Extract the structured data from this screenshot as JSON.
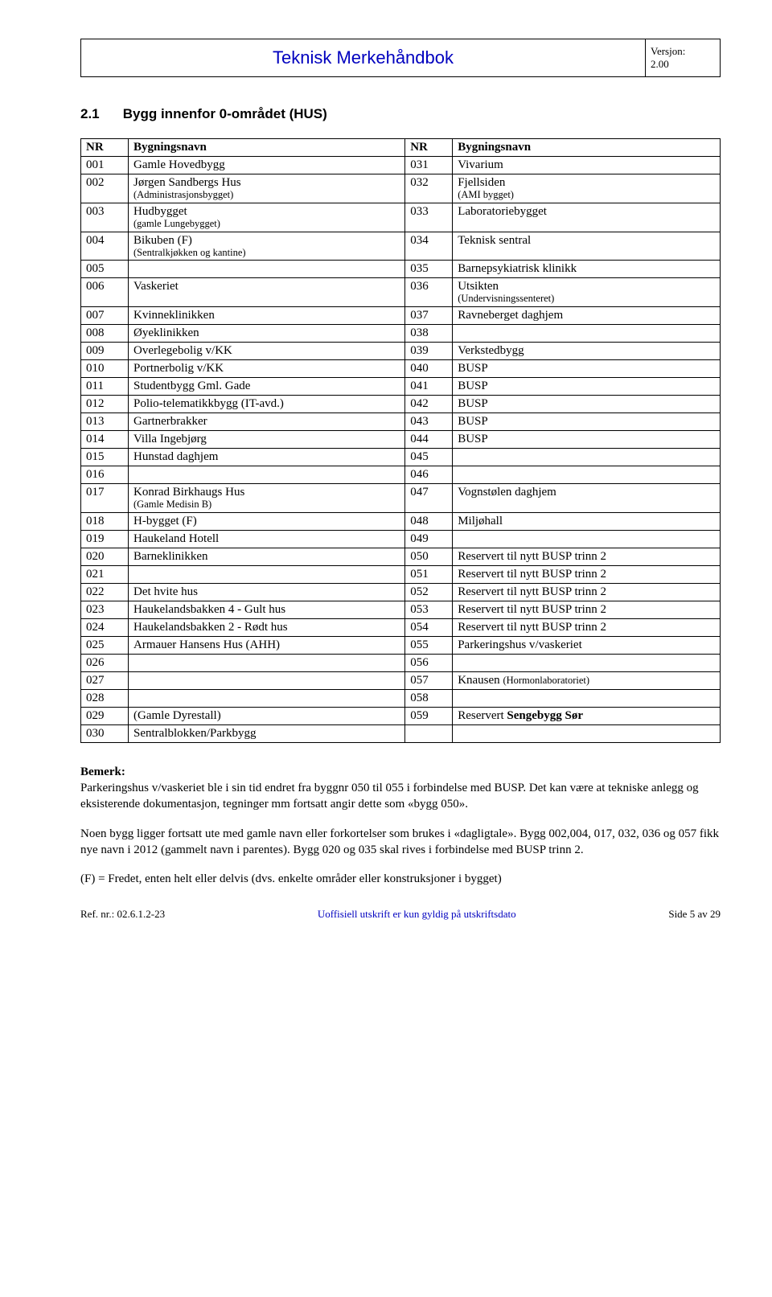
{
  "header": {
    "title": "Teknisk Merkehåndbok",
    "version_label": "Versjon:",
    "version_value": "2.00"
  },
  "section": {
    "number": "2.1",
    "title": "Bygg innenfor 0-området (HUS)"
  },
  "table": {
    "headers": {
      "nr": "NR",
      "name": "Bygningsnavn"
    },
    "rows": [
      {
        "l_nr": "001",
        "l_name": "Gamle Hovedbygg",
        "l_sub": "",
        "r_nr": "031",
        "r_name": "Vivarium",
        "r_sub": ""
      },
      {
        "l_nr": "002",
        "l_name": "Jørgen Sandbergs Hus",
        "l_sub": "(Administrasjonsbygget)",
        "r_nr": "032",
        "r_name": "Fjellsiden",
        "r_sub": "(AMI bygget)"
      },
      {
        "l_nr": "003",
        "l_name": "Hudbygget",
        "l_sub": "(gamle Lungebygget)",
        "r_nr": "033",
        "r_name": "Laboratoriebygget",
        "r_sub": ""
      },
      {
        "l_nr": "004",
        "l_name": "Bikuben (F)",
        "l_sub": "(Sentralkjøkken og kantine)",
        "r_nr": "034",
        "r_name": "Teknisk sentral",
        "r_sub": ""
      },
      {
        "l_nr": "005",
        "l_name": "",
        "l_sub": "",
        "r_nr": "035",
        "r_name": "Barnepsykiatrisk klinikk",
        "r_sub": ""
      },
      {
        "l_nr": "006",
        "l_name": "Vaskeriet",
        "l_sub": "",
        "r_nr": "036",
        "r_name": "Utsikten",
        "r_sub": "(Undervisningssenteret)"
      },
      {
        "l_nr": "007",
        "l_name": "Kvinneklinikken",
        "l_sub": "",
        "r_nr": "037",
        "r_name": "Ravneberget daghjem",
        "r_sub": ""
      },
      {
        "l_nr": "008",
        "l_name": "Øyeklinikken",
        "l_sub": "",
        "r_nr": "038",
        "r_name": "",
        "r_sub": ""
      },
      {
        "l_nr": "009",
        "l_name": "Overlegebolig v/KK",
        "l_sub": "",
        "r_nr": "039",
        "r_name": "Verkstedbygg",
        "r_sub": ""
      },
      {
        "l_nr": "010",
        "l_name": "Portnerbolig v/KK",
        "l_sub": "",
        "r_nr": "040",
        "r_name": "BUSP",
        "r_sub": ""
      },
      {
        "l_nr": "011",
        "l_name": "Studentbygg Gml. Gade",
        "l_sub": "",
        "r_nr": "041",
        "r_name": "BUSP",
        "r_sub": ""
      },
      {
        "l_nr": "012",
        "l_name": "Polio-telematikkbygg (IT-avd.)",
        "l_sub": "",
        "r_nr": "042",
        "r_name": "BUSP",
        "r_sub": ""
      },
      {
        "l_nr": "013",
        "l_name": "Gartnerbrakker",
        "l_sub": "",
        "r_nr": "043",
        "r_name": "BUSP",
        "r_sub": ""
      },
      {
        "l_nr": "014",
        "l_name": "Villa Ingebjørg",
        "l_sub": "",
        "r_nr": "044",
        "r_name": "BUSP",
        "r_sub": ""
      },
      {
        "l_nr": "015",
        "l_name": "Hunstad daghjem",
        "l_sub": "",
        "r_nr": "045",
        "r_name": "",
        "r_sub": ""
      },
      {
        "l_nr": "016",
        "l_name": "",
        "l_sub": "",
        "r_nr": "046",
        "r_name": "",
        "r_sub": ""
      },
      {
        "l_nr": "017",
        "l_name": "Konrad Birkhaugs Hus",
        "l_sub": "(Gamle Medisin B)",
        "r_nr": "047",
        "r_name": "Vognstølen daghjem",
        "r_sub": ""
      },
      {
        "l_nr": "018",
        "l_name": "H-bygget (F)",
        "l_sub": "",
        "r_nr": "048",
        "r_name": "Miljøhall",
        "r_sub": ""
      },
      {
        "l_nr": "019",
        "l_name": "Haukeland Hotell",
        "l_sub": "",
        "r_nr": "049",
        "r_name": "",
        "r_sub": ""
      },
      {
        "l_nr": "020",
        "l_name": "Barneklinikken",
        "l_sub": "",
        "r_nr": "050",
        "r_name": "Reservert til nytt BUSP trinn 2",
        "r_sub": ""
      },
      {
        "l_nr": "021",
        "l_name": "",
        "l_sub": "",
        "r_nr": "051",
        "r_name": "Reservert til nytt BUSP trinn 2",
        "r_sub": ""
      },
      {
        "l_nr": "022",
        "l_name": "Det hvite hus",
        "l_sub": "",
        "r_nr": "052",
        "r_name": "Reservert til nytt BUSP trinn 2",
        "r_sub": ""
      },
      {
        "l_nr": "023",
        "l_name": "Haukelandsbakken 4 - Gult hus",
        "l_sub": "",
        "r_nr": "053",
        "r_name": "Reservert til nytt BUSP trinn 2",
        "r_sub": ""
      },
      {
        "l_nr": "024",
        "l_name": "Haukelandsbakken 2 - Rødt hus",
        "l_sub": "",
        "r_nr": "054",
        "r_name": "Reservert til nytt BUSP trinn 2",
        "r_sub": ""
      },
      {
        "l_nr": "025",
        "l_name": "Armauer Hansens Hus (AHH)",
        "l_sub": "",
        "r_nr": "055",
        "r_name": "Parkeringshus v/vaskeriet",
        "r_sub": ""
      },
      {
        "l_nr": "026",
        "l_name": "",
        "l_sub": "",
        "r_nr": "056",
        "r_name": "",
        "r_sub": ""
      },
      {
        "l_nr": "027",
        "l_name": "",
        "l_sub": "",
        "r_nr": "057",
        "r_name": "Knausen (Hormonlaboratoriet)",
        "r_sub": ""
      },
      {
        "l_nr": "028",
        "l_name": "",
        "l_sub": "",
        "r_nr": "058",
        "r_name": "",
        "r_sub": ""
      },
      {
        "l_nr": "029",
        "l_name": "(Gamle Dyrestall)",
        "l_sub": "",
        "r_nr": "059",
        "r_name": "Reservert Sengebygg Sør",
        "r_sub": "",
        "r_bold": true
      },
      {
        "l_nr": "030",
        "l_name": "Sentralblokken/Parkbygg",
        "l_sub": "",
        "r_nr": "",
        "r_name": "",
        "r_sub": ""
      }
    ]
  },
  "paragraphs": {
    "p1_lead": "Bemerk:",
    "p1_body": "Parkeringshus v/vaskeriet ble i sin tid endret fra byggnr 050 til 055 i forbindelse med BUSP. Det kan være at tekniske anlegg og eksisterende dokumentasjon, tegninger mm fortsatt angir dette som «bygg 050».",
    "p2": "Noen bygg ligger fortsatt ute med gamle navn eller forkortelser som brukes i «dagligtale». Bygg 002,004, 017, 032, 036 og 057 fikk nye navn i 2012 (gammelt navn i parentes). Bygg 020 og 035 skal rives i forbindelse med BUSP trinn 2.",
    "p3": "(F) = Fredet, enten helt eller delvis (dvs. enkelte områder eller konstruksjoner i bygget)"
  },
  "footer": {
    "left": "Ref. nr.: 02.6.1.2-23",
    "mid": "Uoffisiell utskrift er kun gyldig på utskriftsdato",
    "right": "Side 5 av 29"
  }
}
